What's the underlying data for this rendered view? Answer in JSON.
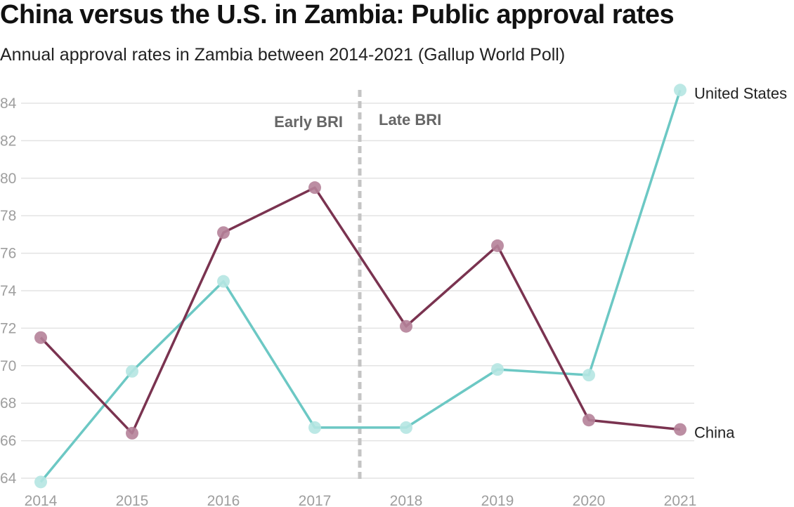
{
  "title": "China versus the U.S. in Zambia: Public approval rates",
  "subtitle": "Annual approval rates in Zambia between 2014-2021 (Gallup World Poll)",
  "chart_data": {
    "type": "line",
    "x": [
      "2014",
      "2015",
      "2016",
      "2017",
      "2018",
      "2019",
      "2020",
      "2021"
    ],
    "series": [
      {
        "name": "United States",
        "color": "#6cc8c4",
        "marker_color": "#b5e5e2",
        "values": [
          63.8,
          69.7,
          74.5,
          66.7,
          66.7,
          69.8,
          69.5,
          84.7
        ]
      },
      {
        "name": "China",
        "color": "#7a3350",
        "marker_color": "#b58299",
        "values": [
          71.5,
          66.4,
          77.1,
          79.5,
          72.1,
          76.4,
          67.1,
          66.6
        ]
      }
    ],
    "y_ticks": [
      64,
      66,
      68,
      70,
      72,
      74,
      76,
      78,
      80,
      82,
      84
    ],
    "ylim": [
      63.5,
      85
    ],
    "grid": true,
    "divider": {
      "between": [
        "2017",
        "2018"
      ],
      "left_label": "Early BRI",
      "right_label": "Late BRI"
    }
  }
}
